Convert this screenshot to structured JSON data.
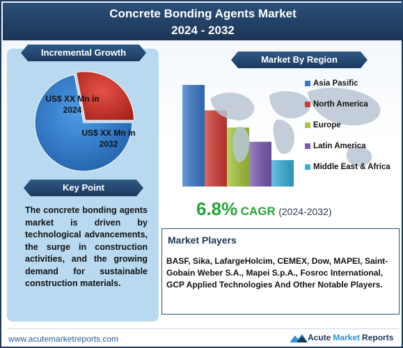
{
  "header": {
    "title_line1": "Concrete Bonding Agents Market",
    "title_line2": "2024 - 2032"
  },
  "incremental": {
    "ribbon_label": "Incremental Growth",
    "label_2024": "US$ XX Mn in 2024",
    "label_2032": "US$ XX Mn in 2032",
    "colors": {
      "2024": "#d9342b",
      "2032": "#2f7fd0"
    }
  },
  "keypoint": {
    "ribbon_label": "Key Point",
    "text": "The concrete bonding agents market is driven by technological advancements, the surge in construction activities, and the growing demand for sustainable construction materials."
  },
  "region": {
    "ribbon_label": "Market By Region"
  },
  "cagr": {
    "value": "6.8%",
    "label": "CAGR",
    "years": "(2024-2032)"
  },
  "players": {
    "title": "Market Players",
    "text": "BASF, Sika, LafargeHolcim, CEMEX, Dow, MAPEI, Saint-Gobain Weber S.A., Mapei S.p.A., Fosroc International, GCP Applied Technologies And Other Notable Players."
  },
  "footer": {
    "url": "www.acutemarketreports.com",
    "brand_word1": "Acute",
    "brand_word2": "Market",
    "brand_word3": "Reports"
  },
  "chart_data": [
    {
      "type": "pie",
      "categories": [
        "2024",
        "2032"
      ],
      "values": [
        28,
        72
      ],
      "colors": [
        "#d9342b",
        "#2f7fd0"
      ]
    },
    {
      "type": "bar",
      "categories": [
        "Asia Pasific",
        "North America",
        "Europe",
        "Latin America",
        "Middle East & Africa"
      ],
      "values": [
        100,
        75,
        58,
        44,
        26
      ],
      "colors": [
        "#3a78c9",
        "#cf3b32",
        "#a3c63a",
        "#7a59b0",
        "#37b0d6"
      ],
      "legend": "right"
    }
  ]
}
